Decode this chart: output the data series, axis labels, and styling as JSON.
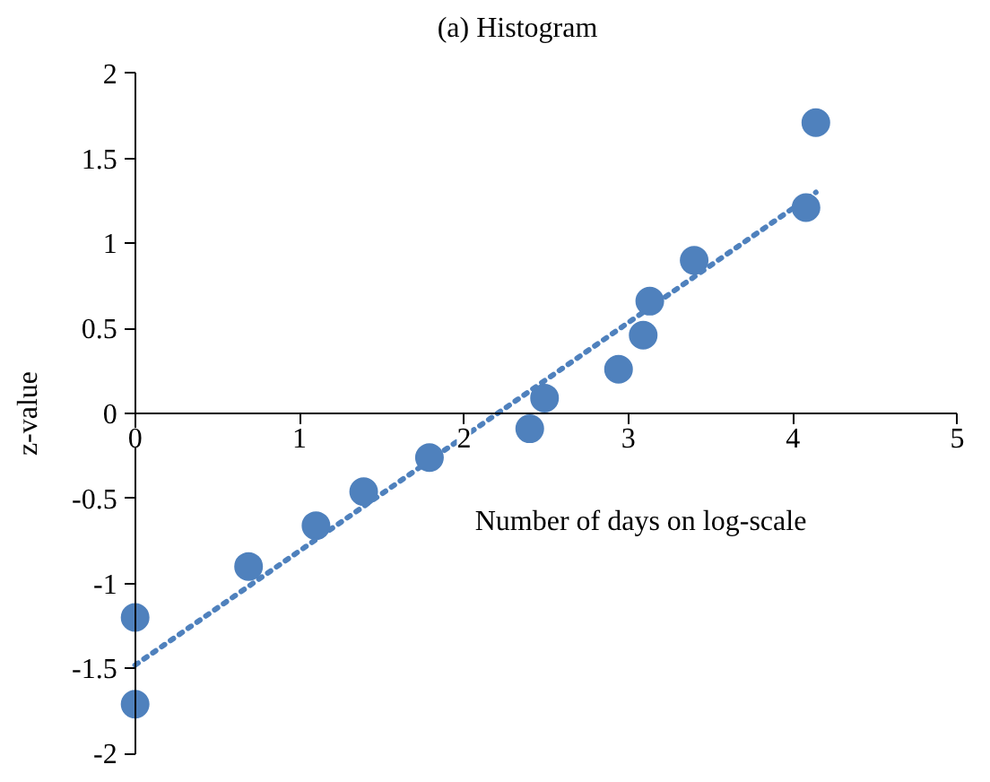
{
  "chart_data": {
    "type": "scatter",
    "title": "(a) Histogram",
    "xlabel": "Number of days on log-scale",
    "ylabel": "z-value",
    "xlim": [
      0,
      5
    ],
    "ylim": [
      -2,
      2
    ],
    "xticks": [
      0,
      1,
      2,
      3,
      4,
      5
    ],
    "yticks": [
      -2,
      -1.5,
      -1,
      -0.5,
      0,
      0.5,
      1,
      1.5,
      2
    ],
    "grid": false,
    "marker": "circle",
    "series": [
      {
        "color": "#4f81bd",
        "x": [
          0,
          0,
          0.69,
          1.1,
          1.39,
          1.79,
          2.4,
          2.49,
          2.94,
          3.09,
          3.13,
          3.4,
          4.08,
          4.14
        ],
        "values": [
          -1.2,
          -1.71,
          -0.9,
          -0.66,
          -0.46,
          -0.26,
          -0.09,
          0.09,
          0.26,
          0.46,
          0.66,
          0.9,
          1.21,
          1.71
        ]
      },
      {
        "type": "line",
        "marker": "none",
        "color": "#4f81bd",
        "line_style": "dotted",
        "x": [
          0,
          4.14
        ],
        "values": [
          -1.48,
          1.3
        ]
      }
    ]
  }
}
